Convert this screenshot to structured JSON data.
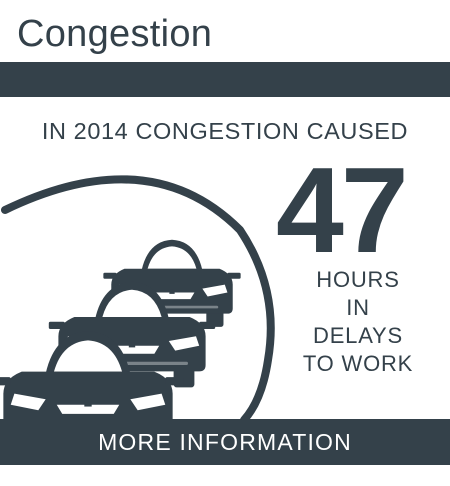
{
  "header": {
    "title": "Congestion"
  },
  "stat": {
    "headline": "IN 2014 CONGESTION CAUSED",
    "value": "47",
    "caption_lines": [
      "HOURS",
      "IN DELAYS",
      "TO WORK"
    ]
  },
  "footer": {
    "link_label": "MORE INFORMATION"
  },
  "colors": {
    "accent": "#34414a",
    "background": "#ffffff",
    "link_text": "#ffffff"
  },
  "icons": [
    "cars-icon"
  ]
}
